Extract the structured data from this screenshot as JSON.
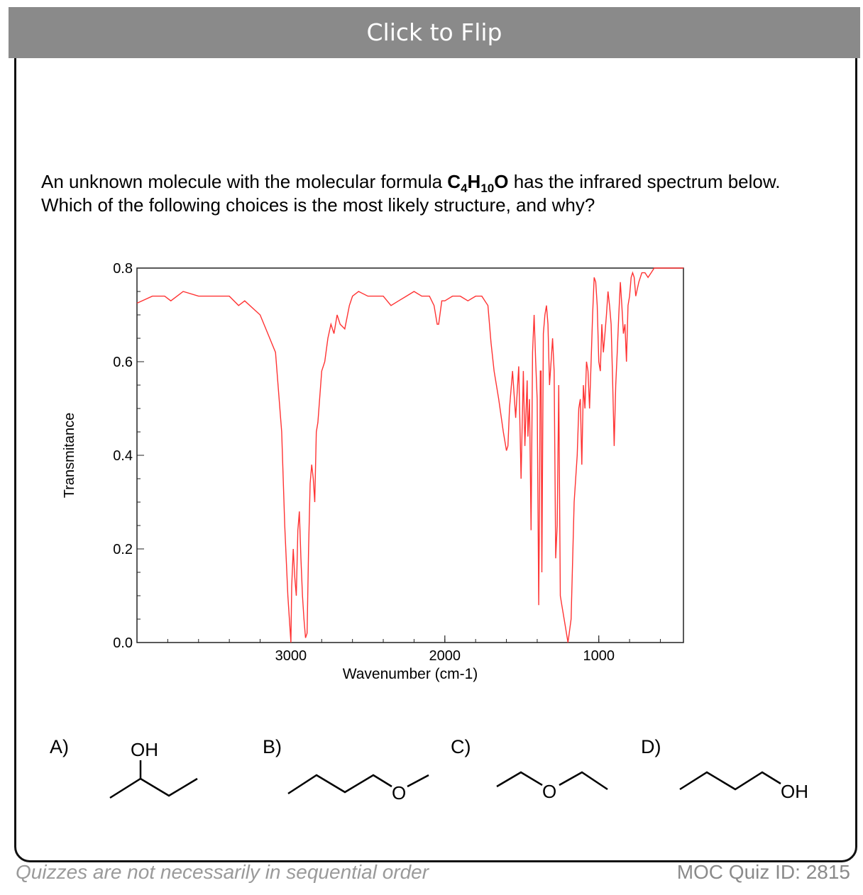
{
  "header": {
    "flip_label": "Click to Flip"
  },
  "question": {
    "line1_prefix": "An unknown molecule with the molecular formula ",
    "formula": {
      "c": "C",
      "c_sub": "4",
      "h": "H",
      "h_sub": "10",
      "o": "O"
    },
    "line1_suffix": " has the infrared spectrum below.",
    "line2": "Which of the following choices is the most likely structure, and why?"
  },
  "chart_data": {
    "type": "line",
    "xlabel": "Wavenumber (cm-1)",
    "ylabel": "Transmitance",
    "xlim": [
      4000,
      450
    ],
    "ylim": [
      0,
      0.8
    ],
    "xticks": [
      3000,
      2000,
      1000
    ],
    "yticks": [
      0.0,
      0.2,
      0.4,
      0.6,
      0.8
    ],
    "ytick_labels": [
      "0.0",
      "0.2",
      "0.4",
      "0.6",
      "0.8"
    ],
    "line_color": "#ff3333",
    "series": [
      {
        "x": [
          4000,
          3900,
          3820,
          3780,
          3700,
          3600,
          3500,
          3400,
          3340,
          3300,
          3200,
          3100,
          3060,
          3040,
          3020,
          3000,
          2995,
          2985,
          2975,
          2965,
          2955,
          2945,
          2935,
          2925,
          2915,
          2905,
          2895,
          2885,
          2875,
          2865,
          2855,
          2845,
          2835,
          2825,
          2800,
          2780,
          2760,
          2740,
          2720,
          2700,
          2680,
          2650,
          2620,
          2600,
          2560,
          2500,
          2450,
          2400,
          2350,
          2300,
          2250,
          2200,
          2150,
          2100,
          2070,
          2050,
          2040,
          2020,
          2000,
          1950,
          1900,
          1850,
          1800,
          1760,
          1740,
          1720,
          1700,
          1680,
          1650,
          1620,
          1600,
          1590,
          1580,
          1560,
          1540,
          1520,
          1505,
          1490,
          1480,
          1470,
          1465,
          1460,
          1450,
          1440,
          1430,
          1420,
          1410,
          1400,
          1390,
          1385,
          1380,
          1375,
          1370,
          1360,
          1350,
          1340,
          1330,
          1320,
          1310,
          1300,
          1290,
          1280,
          1270,
          1260,
          1250,
          1240,
          1220,
          1200,
          1180,
          1160,
          1140,
          1130,
          1120,
          1110,
          1100,
          1090,
          1080,
          1070,
          1060,
          1050,
          1040,
          1030,
          1020,
          1010,
          1000,
          990,
          980,
          970,
          960,
          950,
          940,
          930,
          920,
          910,
          900,
          890,
          880,
          870,
          860,
          850,
          840,
          830,
          820,
          810,
          800,
          790,
          780,
          770,
          760,
          740,
          720,
          700,
          680,
          660,
          640,
          620,
          600,
          580,
          560,
          540,
          520,
          500,
          480,
          460,
          450
        ],
        "y": [
          0.725,
          0.74,
          0.74,
          0.73,
          0.75,
          0.74,
          0.74,
          0.74,
          0.72,
          0.73,
          0.7,
          0.62,
          0.45,
          0.25,
          0.1,
          0.0,
          0.12,
          0.2,
          0.14,
          0.1,
          0.24,
          0.28,
          0.18,
          0.1,
          0.05,
          0.01,
          0.02,
          0.2,
          0.34,
          0.38,
          0.35,
          0.3,
          0.45,
          0.47,
          0.58,
          0.6,
          0.65,
          0.68,
          0.66,
          0.7,
          0.68,
          0.67,
          0.72,
          0.74,
          0.75,
          0.74,
          0.74,
          0.74,
          0.72,
          0.73,
          0.74,
          0.75,
          0.74,
          0.74,
          0.72,
          0.68,
          0.68,
          0.73,
          0.73,
          0.74,
          0.74,
          0.73,
          0.74,
          0.74,
          0.73,
          0.72,
          0.64,
          0.58,
          0.52,
          0.45,
          0.41,
          0.42,
          0.5,
          0.58,
          0.48,
          0.59,
          0.35,
          0.58,
          0.42,
          0.52,
          0.56,
          0.44,
          0.52,
          0.24,
          0.62,
          0.7,
          0.6,
          0.52,
          0.08,
          0.3,
          0.58,
          0.58,
          0.15,
          0.66,
          0.7,
          0.72,
          0.68,
          0.55,
          0.6,
          0.65,
          0.58,
          0.18,
          0.25,
          0.55,
          0.1,
          0.08,
          0.04,
          0.0,
          0.05,
          0.3,
          0.4,
          0.5,
          0.52,
          0.38,
          0.55,
          0.5,
          0.6,
          0.58,
          0.5,
          0.6,
          0.7,
          0.78,
          0.77,
          0.72,
          0.6,
          0.58,
          0.68,
          0.62,
          0.66,
          0.7,
          0.75,
          0.72,
          0.68,
          0.56,
          0.42,
          0.55,
          0.62,
          0.7,
          0.77,
          0.72,
          0.66,
          0.68,
          0.6,
          0.72,
          0.74,
          0.78,
          0.79,
          0.78,
          0.74,
          0.77,
          0.79,
          0.79,
          0.78,
          0.79,
          0.8,
          0.8,
          0.8,
          0.8,
          0.8,
          0.8,
          0.8,
          0.8,
          0.8,
          0.8,
          0.8
        ]
      }
    ]
  },
  "choices": [
    {
      "letter": "A)",
      "label": "OH"
    },
    {
      "letter": "B)",
      "label": "O"
    },
    {
      "letter": "C)",
      "label": "O"
    },
    {
      "letter": "D)",
      "label": "OH"
    }
  ],
  "footer": {
    "left": "Quizzes are not necessarily in sequential order",
    "right": "MOC Quiz ID: 2815"
  }
}
